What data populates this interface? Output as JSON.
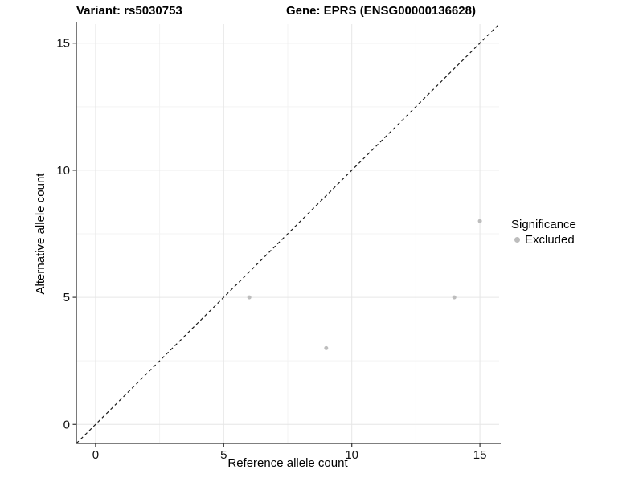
{
  "title": {
    "variant": "Variant: rs5030753",
    "gene": "Gene: EPRS (ENSG00000136628)"
  },
  "axes": {
    "x_label": "Reference allele count",
    "y_label": "Alternative allele count"
  },
  "legend": {
    "title": "Significance",
    "entries": [
      {
        "label": "Excluded",
        "color": "#bdbdbd",
        "marker": "circle"
      }
    ]
  },
  "colors": {
    "point": "#bdbdbd",
    "grid_major": "#e6e6e6",
    "grid_minor": "#f3f3f3",
    "axis_line": "#333333",
    "identity_line": "#1a1a1a",
    "tick_label": "#111111"
  },
  "chart_data": {
    "type": "scatter",
    "title": "Variant: rs5030753    Gene: EPRS (ENSG00000136628)",
    "xlabel": "Reference allele count",
    "ylabel": "Alternative allele count",
    "xlim": [
      -0.75,
      15.75
    ],
    "ylim": [
      -0.75,
      15.75
    ],
    "xticks": [
      0,
      5,
      10,
      15
    ],
    "yticks": [
      0,
      5,
      10,
      15
    ],
    "x_minor_gridlines": [
      2.5,
      7.5,
      12.5
    ],
    "y_minor_gridlines": [
      2.5,
      7.5,
      12.5
    ],
    "grid": "on",
    "legend_position": "right",
    "identity_line": {
      "style": "dashed",
      "from": [
        -0.75,
        -0.75
      ],
      "to": [
        15.75,
        15.75
      ]
    },
    "series": [
      {
        "name": "Excluded",
        "color": "#bdbdbd",
        "points": [
          {
            "x": 6,
            "y": 5
          },
          {
            "x": 9,
            "y": 3
          },
          {
            "x": 14,
            "y": 5
          },
          {
            "x": 15,
            "y": 8
          }
        ]
      }
    ]
  }
}
